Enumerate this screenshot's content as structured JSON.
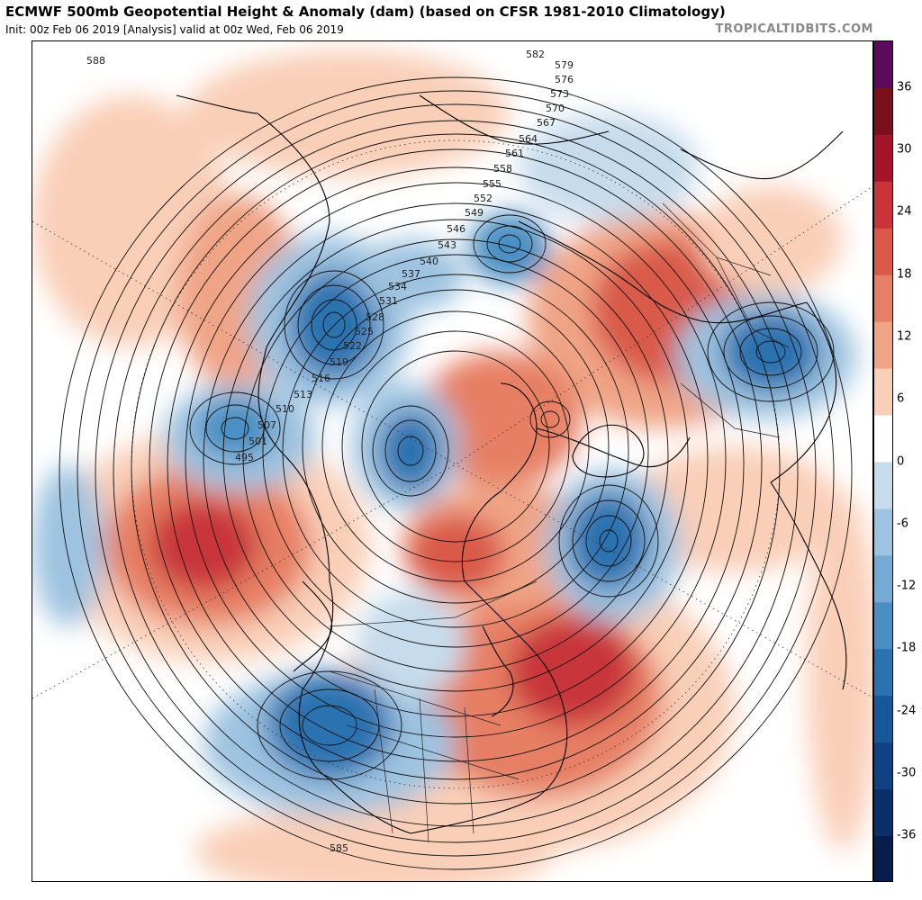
{
  "header": {
    "title": "ECMWF 500mb Geopotential Height & Anomaly (dam) (based on CFSR 1981-2010 Climatology)",
    "subtitle": "Init: 00z Feb 06 2019   [Analysis]   valid at 00z Wed, Feb 06 2019",
    "credit": "TROPICALTIDBITS.COM"
  },
  "colorbar": {
    "ticks": [
      "36",
      "30",
      "24",
      "18",
      "12",
      "6",
      "0",
      "-6",
      "-12",
      "-18",
      "-24",
      "-30",
      "-36"
    ],
    "colors": [
      "#5c0a5e",
      "#7a0f1e",
      "#a5152a",
      "#c8343a",
      "#d95a49",
      "#e67f63",
      "#f0a486",
      "#f9cfb8",
      "#ffffff",
      "#c6dcec",
      "#9dc3e0",
      "#74aad3",
      "#4a8fc3",
      "#2b72b0",
      "#17589a",
      "#0e4282",
      "#0a2f6b",
      "#061d4e"
    ]
  },
  "map": {
    "contour_labels": [
      "582",
      "579",
      "576",
      "573",
      "570",
      "567",
      "564",
      "561",
      "558",
      "555",
      "552",
      "549",
      "546",
      "543",
      "540",
      "537",
      "534",
      "531",
      "528",
      "525",
      "522",
      "519",
      "516",
      "513",
      "510",
      "507",
      "501",
      "495",
      "588",
      "585"
    ],
    "anomaly_features": [
      {
        "kind": "positive",
        "region": "Gulf of Alaska / NE Pacific"
      },
      {
        "kind": "positive",
        "region": "Eastern United States / W Atlantic"
      },
      {
        "kind": "positive",
        "region": "Russia / Siberia"
      },
      {
        "kind": "positive",
        "region": "Greenland / Arctic"
      },
      {
        "kind": "negative",
        "region": "Western North America"
      },
      {
        "kind": "negative",
        "region": "Hudson Bay / Canadian Arctic"
      },
      {
        "kind": "negative",
        "region": "Northern Europe / Scandinavia"
      },
      {
        "kind": "negative",
        "region": "Kamchatka / NW Pacific"
      },
      {
        "kind": "negative",
        "region": "North Atlantic near Iceland"
      }
    ]
  }
}
